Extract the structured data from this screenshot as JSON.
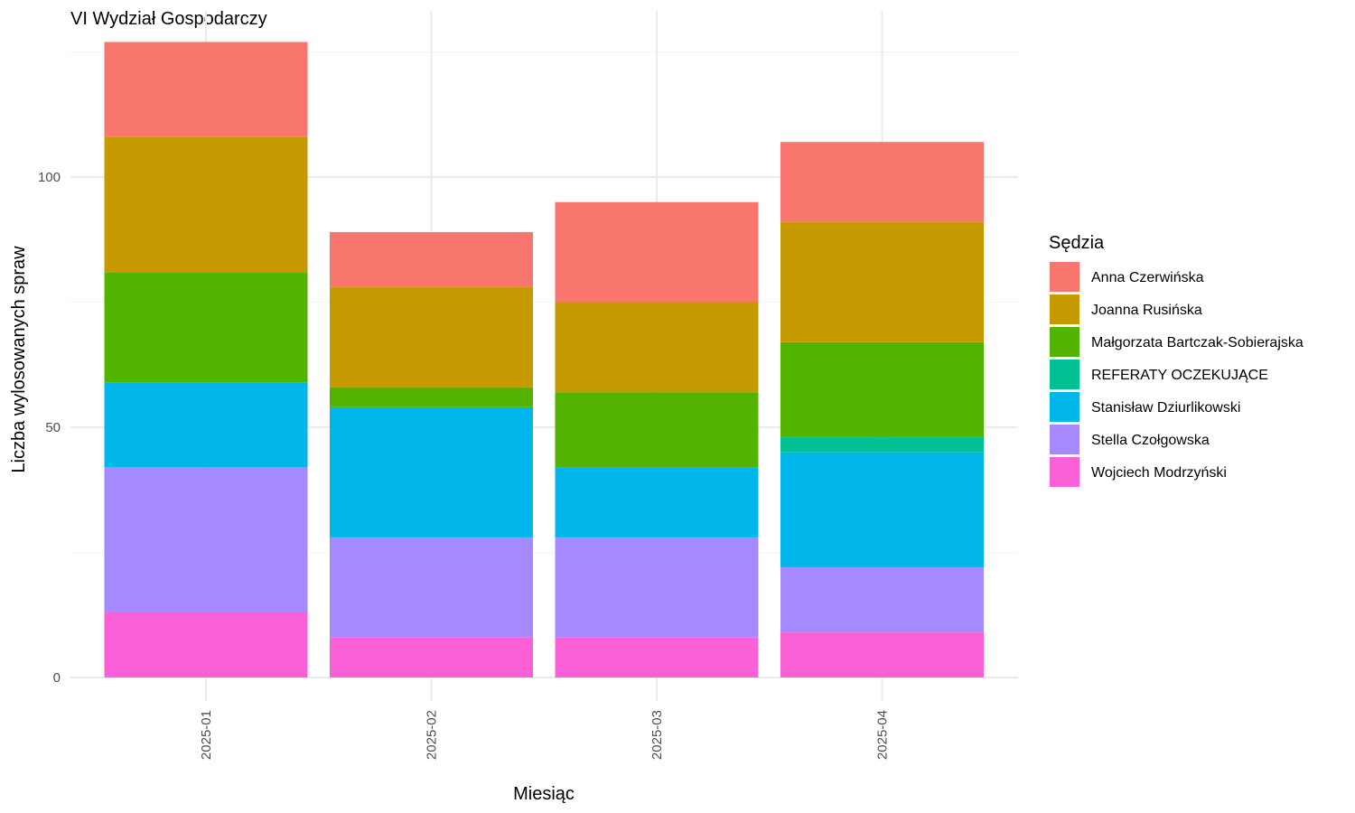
{
  "chart_data": {
    "type": "bar",
    "stacked": true,
    "title": "VI Wydział Gospodarczy",
    "xlabel": "Miesiąc",
    "ylabel": "Liczba wylosowanych spraw",
    "ylim": [
      0,
      127
    ],
    "yticks": [
      0,
      50,
      100
    ],
    "grid": true,
    "legend": {
      "title": "Sędzia",
      "placement": "right"
    },
    "categories": [
      "2025-01",
      "2025-02",
      "2025-03",
      "2025-04"
    ],
    "series": [
      {
        "name": "Wojciech Modrzyński",
        "color": "#FB61D7",
        "values": [
          13,
          8,
          8,
          9
        ]
      },
      {
        "name": "Stella Czołgowska",
        "color": "#A58AFF",
        "values": [
          29,
          20,
          20,
          13
        ]
      },
      {
        "name": "Stanisław Dziurlikowski",
        "color": "#00B6EB",
        "values": [
          17,
          26,
          14,
          23
        ]
      },
      {
        "name": "REFERATY OCZEKUJĄCE",
        "color": "#00C094",
        "values": [
          0,
          0,
          0,
          3
        ]
      },
      {
        "name": "Małgorzata Bartczak-Sobierajska",
        "color": "#53B400",
        "values": [
          22,
          4,
          15,
          19
        ]
      },
      {
        "name": "Joanna Rusińska",
        "color": "#C49A00",
        "values": [
          27,
          20,
          18,
          24
        ]
      },
      {
        "name": "Anna Czerwińska",
        "color": "#F8766D",
        "values": [
          19,
          11,
          20,
          16
        ]
      }
    ],
    "legend_order": [
      "Anna Czerwińska",
      "Joanna Rusińska",
      "Małgorzata Bartczak-Sobierajska",
      "REFERATY OCZEKUJĄCE",
      "Stanisław Dziurlikowski",
      "Stella Czołgowska",
      "Wojciech Modrzyński"
    ]
  }
}
